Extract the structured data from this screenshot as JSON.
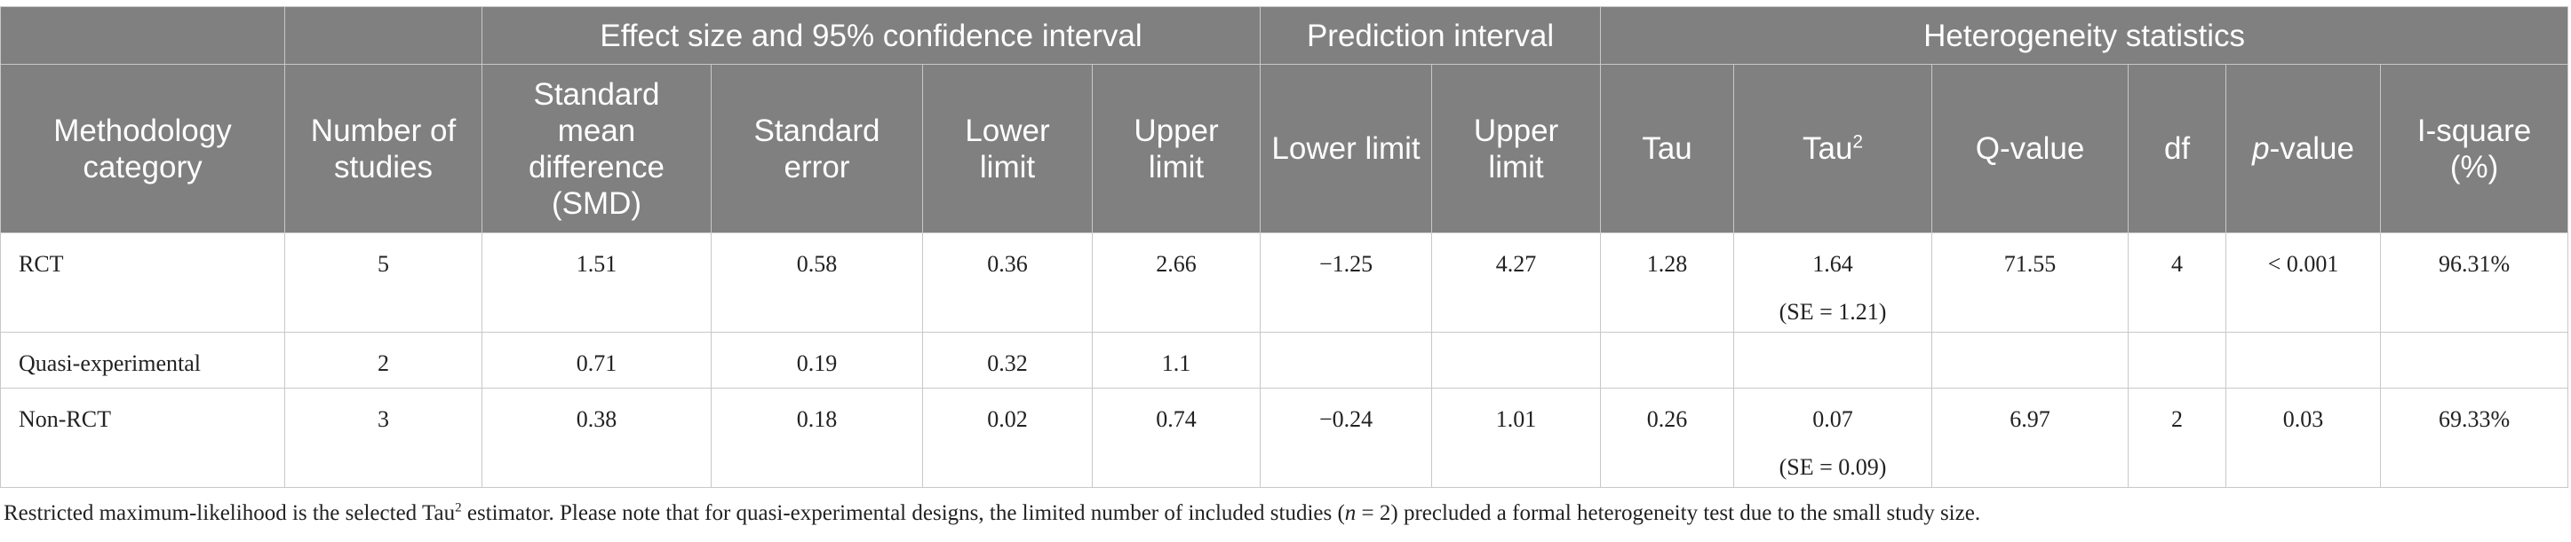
{
  "header": {
    "groups": {
      "effect_size": "Effect size and 95% confidence interval",
      "prediction": "Prediction interval",
      "heterogeneity": "Heterogeneity statistics"
    },
    "columns": {
      "methodology": "Methodology category",
      "num_studies": "Number of studies",
      "smd": "Standard mean difference (SMD)",
      "se": "Standard error",
      "lower": "Lower limit",
      "upper": "Upper limit",
      "pi_lower": "Lower limit",
      "pi_upper": "Upper limit",
      "tau": "Tau",
      "tau2_base": "Tau",
      "tau2_sup": "2",
      "q_value": "Q-value",
      "df": "df",
      "p_italic": "p",
      "p_rest": "-value",
      "i_square": "I-square (%)"
    }
  },
  "rows": [
    {
      "category": "RCT",
      "n": "5",
      "smd": "1.51",
      "se": "0.58",
      "lower": "0.36",
      "upper": "2.66",
      "pi_lower": "−1.25",
      "pi_upper": "4.27",
      "tau": "1.28",
      "tau2": "1.64",
      "tau2_se": "(SE = 1.21)",
      "q": "71.55",
      "df": "4",
      "p": "< 0.001",
      "i2": "96.31%"
    },
    {
      "category": "Quasi-experimental",
      "n": "2",
      "smd": "0.71",
      "se": "0.19",
      "lower": "0.32",
      "upper": "1.1",
      "pi_lower": "",
      "pi_upper": "",
      "tau": "",
      "tau2": "",
      "tau2_se": "",
      "q": "",
      "df": "",
      "p": "",
      "i2": ""
    },
    {
      "category": "Non-RCT",
      "n": "3",
      "smd": "0.38",
      "se": "0.18",
      "lower": "0.02",
      "upper": "0.74",
      "pi_lower": "−0.24",
      "pi_upper": "1.01",
      "tau": "0.26",
      "tau2": "0.07",
      "tau2_se": "(SE = 0.09)",
      "q": "6.97",
      "df": "2",
      "p": "0.03",
      "i2": "69.33%"
    }
  ],
  "footnote": {
    "part1": "Restricted maximum-likelihood is the selected Tau",
    "sup": "2",
    "part2": " estimator. Please note that for quasi-experimental designs, the limited number of included studies (",
    "n_italic": "n",
    "part3": " = 2) precluded a formal heterogeneity test due to the small study size."
  }
}
